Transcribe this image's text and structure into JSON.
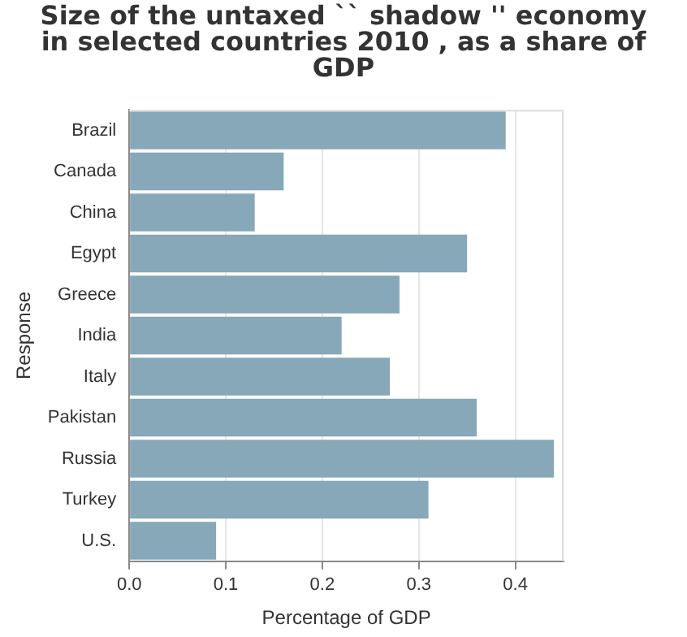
{
  "chart_data": {
    "type": "bar",
    "orientation": "horizontal",
    "title": "Size of the untaxed `` shadow '' economy in selected countries 2010 , as a share of GDP",
    "xlabel": "Percentage of GDP",
    "ylabel": "Response",
    "categories": [
      "Brazil",
      "Canada",
      "China",
      "Egypt",
      "Greece",
      "India",
      "Italy",
      "Pakistan",
      "Russia",
      "Turkey",
      "U.S."
    ],
    "values": [
      0.39,
      0.16,
      0.13,
      0.35,
      0.28,
      0.22,
      0.27,
      0.36,
      0.44,
      0.31,
      0.09
    ],
    "color": "#86a8b8",
    "xlim": [
      0,
      0.45
    ],
    "xticks": [
      {
        "value": 0,
        "label": "0.0"
      },
      0.1,
      0.2,
      0.3,
      0.4
    ],
    "grid": "x",
    "legend": false
  }
}
